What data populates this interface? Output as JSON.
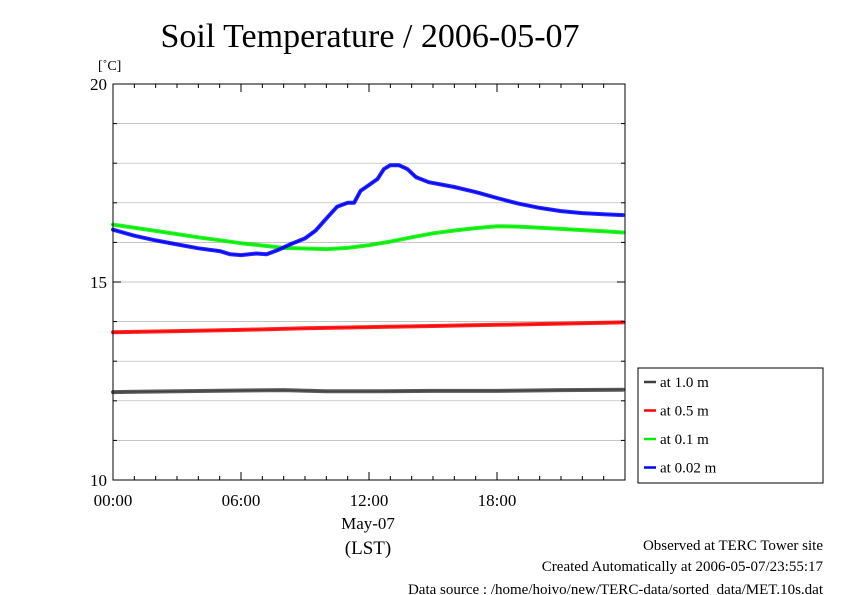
{
  "title": "Soil Temperature / 2006-05-07",
  "unit": "[˚C]",
  "xlabel": "(LST)",
  "date_label": "May-07",
  "footer": {
    "line1": "Observed at TERC Tower site",
    "line2": "Created Automatically at 2006-05-07/23:55:17",
    "line3": "Data source : /home/hoivo/new/TERC-data/sorted_data/MET.10s.dat"
  },
  "chart_data": {
    "type": "line",
    "title": "Soil Temperature / 2006-05-07",
    "xlabel": "(LST)",
    "ylabel": "[˚C]",
    "xlim": [
      0,
      24
    ],
    "ylim": [
      10,
      20
    ],
    "x_ticks": [
      {
        "value": 0,
        "label": "00:00"
      },
      {
        "value": 6,
        "label": "06:00"
      },
      {
        "value": 12,
        "label": "12:00"
      },
      {
        "value": 18,
        "label": "18:00"
      }
    ],
    "y_ticks": [
      {
        "value": 10,
        "label": "10"
      },
      {
        "value": 15,
        "label": "15"
      },
      {
        "value": 20,
        "label": "20"
      }
    ],
    "grid": true,
    "legend_position": "right",
    "series": [
      {
        "name": "at 1.0 m",
        "color": "#404040",
        "points": [
          [
            0,
            12.22
          ],
          [
            3,
            12.24
          ],
          [
            6,
            12.26
          ],
          [
            8,
            12.27
          ],
          [
            10,
            12.24
          ],
          [
            12,
            12.24
          ],
          [
            15,
            12.25
          ],
          [
            18,
            12.25
          ],
          [
            21,
            12.27
          ],
          [
            23.9,
            12.28
          ]
        ]
      },
      {
        "name": "at 0.5 m",
        "color": "#ff0000",
        "points": [
          [
            0,
            13.73
          ],
          [
            3,
            13.76
          ],
          [
            6,
            13.79
          ],
          [
            9,
            13.83
          ],
          [
            12,
            13.86
          ],
          [
            15,
            13.89
          ],
          [
            18,
            13.92
          ],
          [
            21,
            13.95
          ],
          [
            23.9,
            13.98
          ]
        ]
      },
      {
        "name": "at 0.1 m",
        "color": "#00ee00",
        "points": [
          [
            0,
            16.45
          ],
          [
            2,
            16.29
          ],
          [
            4,
            16.13
          ],
          [
            6,
            15.98
          ],
          [
            8,
            15.86
          ],
          [
            10,
            15.83
          ],
          [
            11,
            15.86
          ],
          [
            12,
            15.93
          ],
          [
            13,
            16.02
          ],
          [
            14,
            16.13
          ],
          [
            15,
            16.23
          ],
          [
            16,
            16.3
          ],
          [
            17,
            16.36
          ],
          [
            18,
            16.41
          ],
          [
            19,
            16.4
          ],
          [
            20,
            16.37
          ],
          [
            21,
            16.34
          ],
          [
            22,
            16.31
          ],
          [
            23,
            16.28
          ],
          [
            23.9,
            16.25
          ]
        ]
      },
      {
        "name": "at 0.02 m",
        "color": "#0000ff",
        "points": [
          [
            0,
            16.32
          ],
          [
            1,
            16.17
          ],
          [
            2,
            16.05
          ],
          [
            3,
            15.95
          ],
          [
            4,
            15.85
          ],
          [
            5,
            15.78
          ],
          [
            5.5,
            15.7
          ],
          [
            6,
            15.68
          ],
          [
            6.7,
            15.72
          ],
          [
            7.2,
            15.7
          ],
          [
            7.7,
            15.8
          ],
          [
            8.3,
            15.95
          ],
          [
            9,
            16.1
          ],
          [
            9.5,
            16.3
          ],
          [
            10,
            16.6
          ],
          [
            10.5,
            16.9
          ],
          [
            11,
            17.0
          ],
          [
            11.3,
            17.0
          ],
          [
            11.6,
            17.3
          ],
          [
            12,
            17.45
          ],
          [
            12.4,
            17.6
          ],
          [
            12.7,
            17.85
          ],
          [
            13,
            17.95
          ],
          [
            13.4,
            17.95
          ],
          [
            13.8,
            17.85
          ],
          [
            14.2,
            17.65
          ],
          [
            14.8,
            17.52
          ],
          [
            15.5,
            17.45
          ],
          [
            16,
            17.4
          ],
          [
            17,
            17.27
          ],
          [
            18,
            17.12
          ],
          [
            19,
            16.98
          ],
          [
            20,
            16.87
          ],
          [
            21,
            16.79
          ],
          [
            22,
            16.74
          ],
          [
            23,
            16.71
          ],
          [
            23.9,
            16.69
          ]
        ]
      }
    ]
  }
}
